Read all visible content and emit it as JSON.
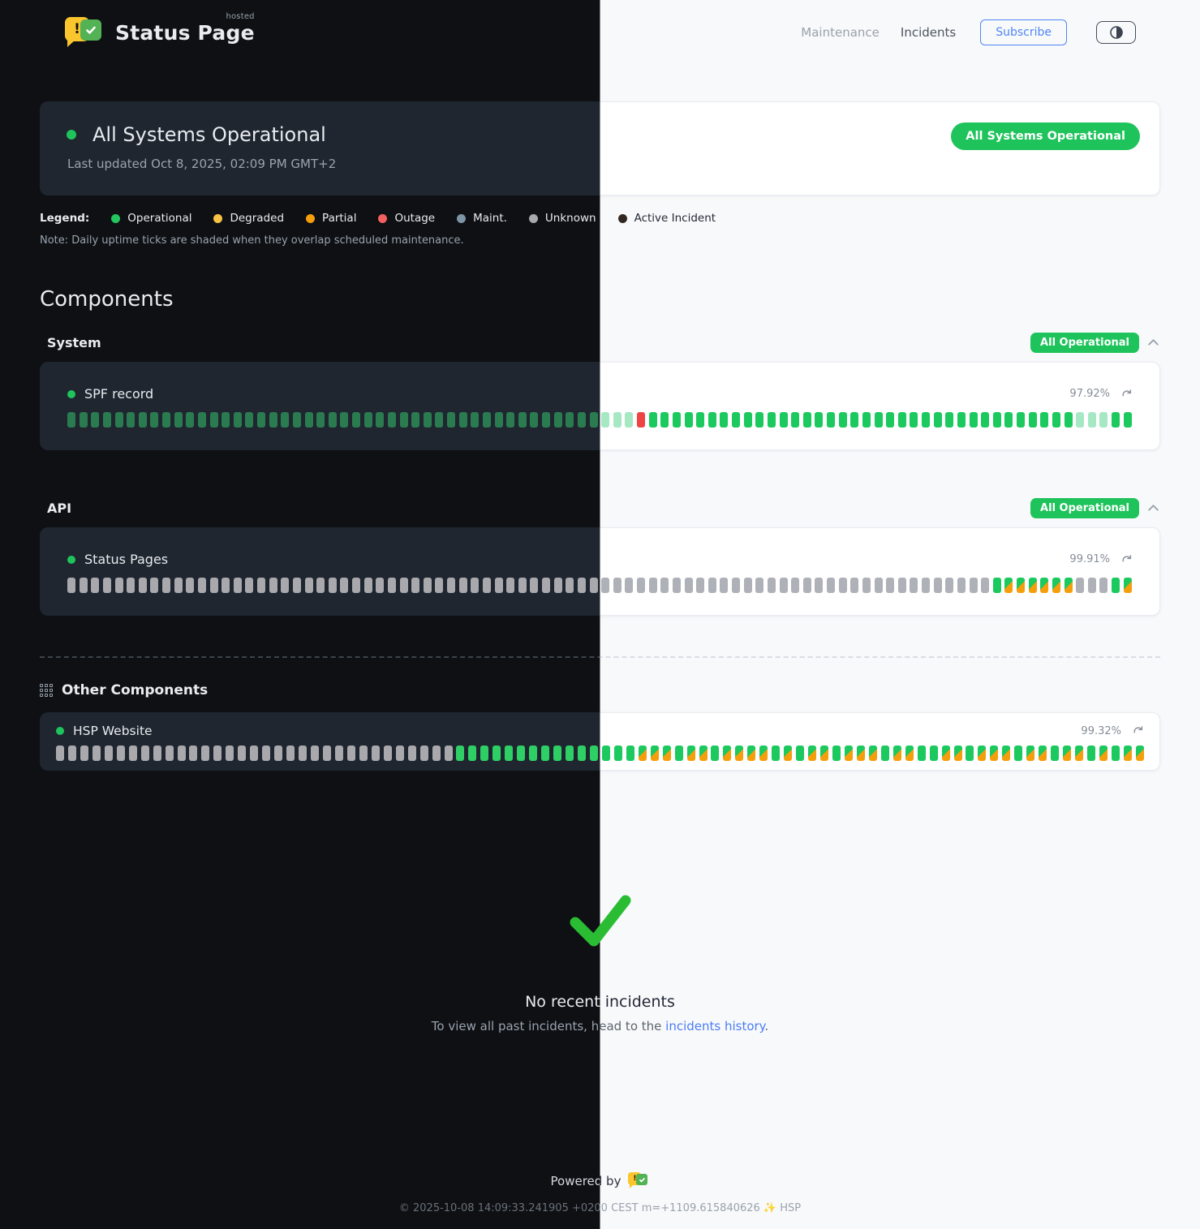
{
  "brand": {
    "name": "Status Page",
    "superscript": "hosted"
  },
  "nav": {
    "maintenance": "Maintenance",
    "incidents": "Incidents",
    "subscribe": "Subscribe"
  },
  "status": {
    "title": "All Systems Operational",
    "updated": "Last updated Oct 8, 2025, 02:09 PM GMT+2",
    "badge": "All Systems Operational"
  },
  "legend": {
    "label": "Legend:",
    "items": [
      {
        "label": "Operational",
        "color": "#22c55e"
      },
      {
        "label": "Degraded",
        "color": "#f6c244"
      },
      {
        "label": "Partial",
        "color": "#f59e0b"
      },
      {
        "label": "Outage",
        "color": "#f26060"
      },
      {
        "label": "Maint.",
        "color": "#7e95a7"
      },
      {
        "label": "Unknown",
        "color": "#a8a8ad"
      },
      {
        "label": "Active Incident",
        "color": "#33281f"
      }
    ],
    "note": "Note: Daily uptime ticks are shaded when they overlap scheduled maintenance."
  },
  "components": {
    "heading": "Components",
    "groups": [
      {
        "name": "System",
        "badge": "All Operational",
        "items": [
          {
            "name": "SPF record",
            "uptime": "97.92%",
            "ticks": "ssssssssssssssssssssssssssssssssssssssssssssssssroooooooooooooooooooooooooooooooooooosssoo"
          }
        ]
      },
      {
        "name": "API",
        "badge": "All Operational",
        "items": [
          {
            "name": "Status Pages",
            "uptime": "99.91%",
            "ticks": "uuuuuuuuuuuuuuuuuuuuuuuuuuuuuuuuuuuuuuuuuuuuuuuuuuuuuuuuuuuuuuuuuuuuuuuuuuuuuuoppppppuuuop"
          }
        ]
      }
    ],
    "other": {
      "title": "Other Components",
      "items": [
        {
          "name": "HSP Website",
          "uptime": "99.32%",
          "ticks": "uuuuuuuuuuuuuuuuuuuuuuuuuuuuuuuuuooooooooooooooopppoppoppppopoppopppoppooppopppoppoppopopp"
        }
      ]
    }
  },
  "incidents": {
    "title": "No recent incidents",
    "subtitle_prefix": "To view all past incidents, head to the ",
    "link": "incidents history",
    "subtitle_suffix": "."
  },
  "footer": {
    "powered_by": "Powered by",
    "copyright": "© 2025-10-08 14:09:33.241905 +0200 CEST m=+1109.615840626 ✨ HSP"
  },
  "colors": {
    "accent_green": "#1fc35b",
    "check_green": "#2abd33",
    "link_blue": "#4a7df5",
    "subscribe_blue": "#4f86f3",
    "partial_orange": "#f59e0b",
    "outage_red": "#ef4444"
  }
}
